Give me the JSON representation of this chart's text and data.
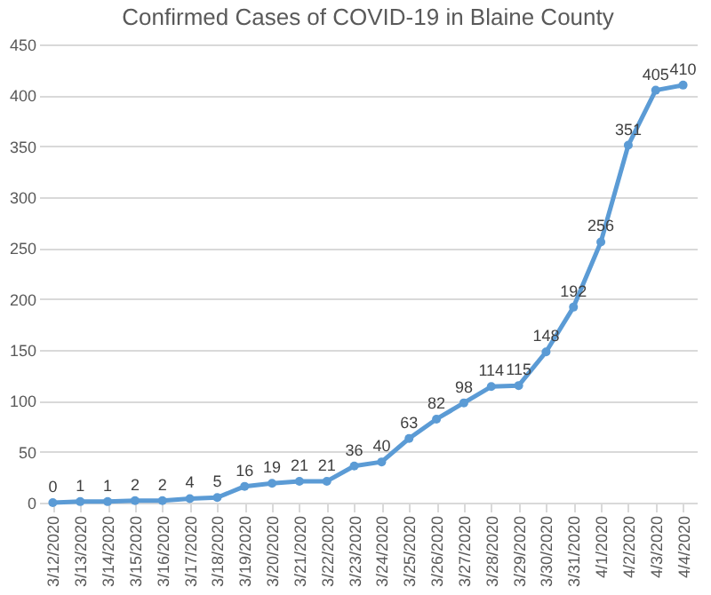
{
  "chart_data": {
    "type": "line",
    "title": "Confirmed Cases of COVID-19 in Blaine County",
    "categories": [
      "3/12/2020",
      "3/13/2020",
      "3/14/2020",
      "3/15/2020",
      "3/16/2020",
      "3/17/2020",
      "3/18/2020",
      "3/19/2020",
      "3/20/2020",
      "3/21/2020",
      "3/22/2020",
      "3/23/2020",
      "3/24/2020",
      "3/25/2020",
      "3/26/2020",
      "3/27/2020",
      "3/28/2020",
      "3/29/2020",
      "3/30/2020",
      "3/31/2020",
      "4/1/2020",
      "4/2/2020",
      "4/3/2020",
      "4/4/2020"
    ],
    "series": [
      {
        "color": "#5b9bd5",
        "values": [
          0,
          1,
          1,
          2,
          2,
          4,
          5,
          16,
          19,
          21,
          21,
          36,
          40,
          63,
          82,
          98,
          114,
          115,
          148,
          192,
          256,
          351,
          405,
          410
        ]
      }
    ],
    "ylim": [
      0,
      450
    ],
    "yticks": [
      0,
      50,
      100,
      150,
      200,
      250,
      300,
      350,
      400,
      450
    ],
    "grid": "y",
    "marker": "circle",
    "line_style": "solid",
    "data_labels": true
  }
}
